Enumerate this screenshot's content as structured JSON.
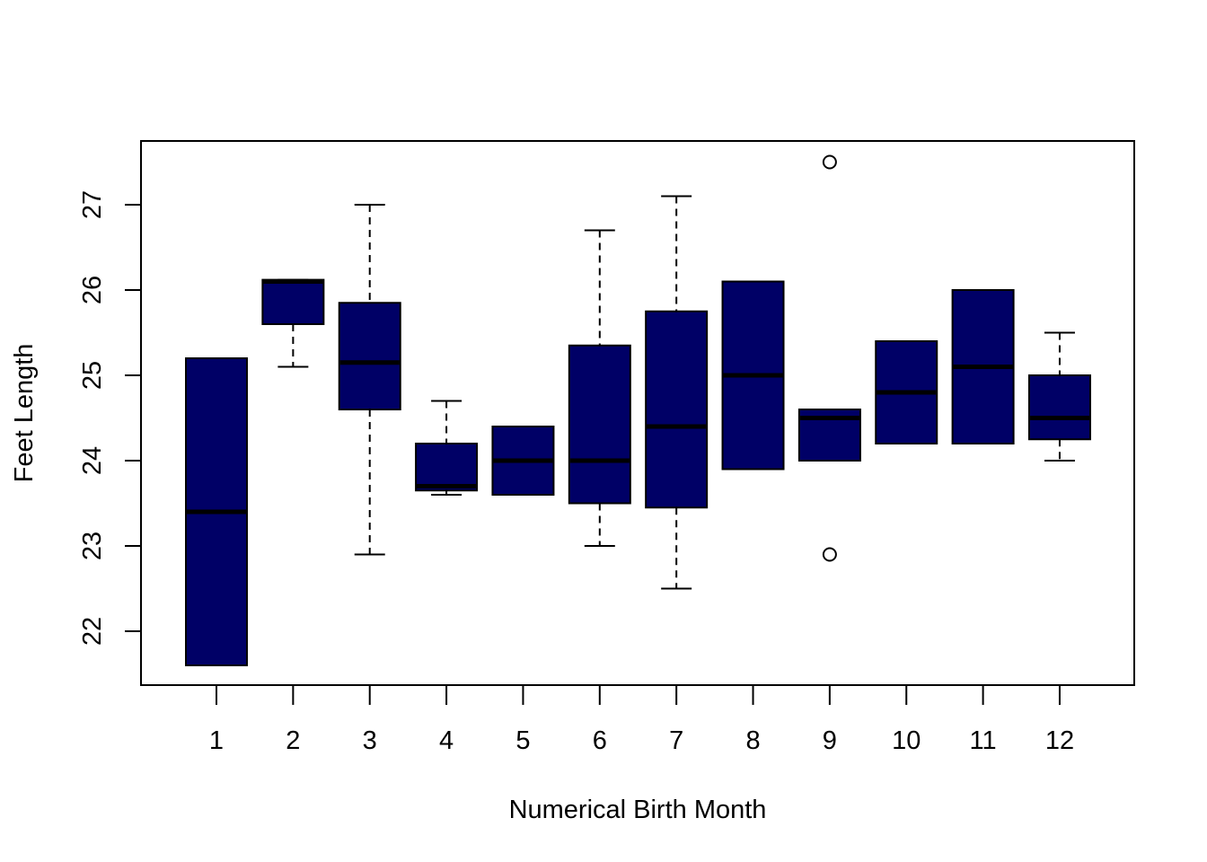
{
  "chart_data": {
    "type": "box",
    "title": "",
    "xlabel": "Numerical Birth Month",
    "ylabel": "Feet Length",
    "categories": [
      "1",
      "2",
      "3",
      "4",
      "5",
      "6",
      "7",
      "8",
      "9",
      "10",
      "11",
      "12"
    ],
    "y_ticks": [
      22,
      23,
      24,
      25,
      26,
      27
    ],
    "ylim": [
      21.4,
      27.75
    ],
    "grid": false,
    "legend": "none",
    "box_color": "#000066",
    "median_color": "#000000",
    "boxes": [
      {
        "category": "1",
        "whisker_low": 21.6,
        "q1": 21.6,
        "median": 23.4,
        "q3": 25.2,
        "whisker_high": 25.2,
        "outliers": []
      },
      {
        "category": "2",
        "whisker_low": 25.1,
        "q1": 25.6,
        "median": 26.1,
        "q3": 26.12,
        "whisker_high": 26.12,
        "outliers": []
      },
      {
        "category": "3",
        "whisker_low": 22.9,
        "q1": 24.6,
        "median": 25.15,
        "q3": 25.85,
        "whisker_high": 27.0,
        "outliers": []
      },
      {
        "category": "4",
        "whisker_low": 23.6,
        "q1": 23.65,
        "median": 23.7,
        "q3": 24.2,
        "whisker_high": 24.7,
        "outliers": []
      },
      {
        "category": "5",
        "whisker_low": 23.6,
        "q1": 23.6,
        "median": 24.0,
        "q3": 24.4,
        "whisker_high": 24.4,
        "outliers": []
      },
      {
        "category": "6",
        "whisker_low": 23.0,
        "q1": 23.5,
        "median": 24.0,
        "q3": 25.35,
        "whisker_high": 26.7,
        "outliers": []
      },
      {
        "category": "7",
        "whisker_low": 22.5,
        "q1": 23.45,
        "median": 24.4,
        "q3": 25.75,
        "whisker_high": 27.1,
        "outliers": []
      },
      {
        "category": "8",
        "whisker_low": 23.9,
        "q1": 23.9,
        "median": 25.0,
        "q3": 26.1,
        "whisker_high": 26.1,
        "outliers": []
      },
      {
        "category": "9",
        "whisker_low": 24.0,
        "q1": 24.0,
        "median": 24.5,
        "q3": 24.6,
        "whisker_high": 24.6,
        "outliers": [
          27.5,
          22.9
        ]
      },
      {
        "category": "10",
        "whisker_low": 24.2,
        "q1": 24.2,
        "median": 24.8,
        "q3": 25.4,
        "whisker_high": 25.4,
        "outliers": []
      },
      {
        "category": "11",
        "whisker_low": 24.2,
        "q1": 24.2,
        "median": 25.1,
        "q3": 26.0,
        "whisker_high": 26.0,
        "outliers": []
      },
      {
        "category": "12",
        "whisker_low": 24.0,
        "q1": 24.25,
        "median": 24.5,
        "q3": 25.0,
        "whisker_high": 25.5,
        "outliers": []
      }
    ]
  }
}
